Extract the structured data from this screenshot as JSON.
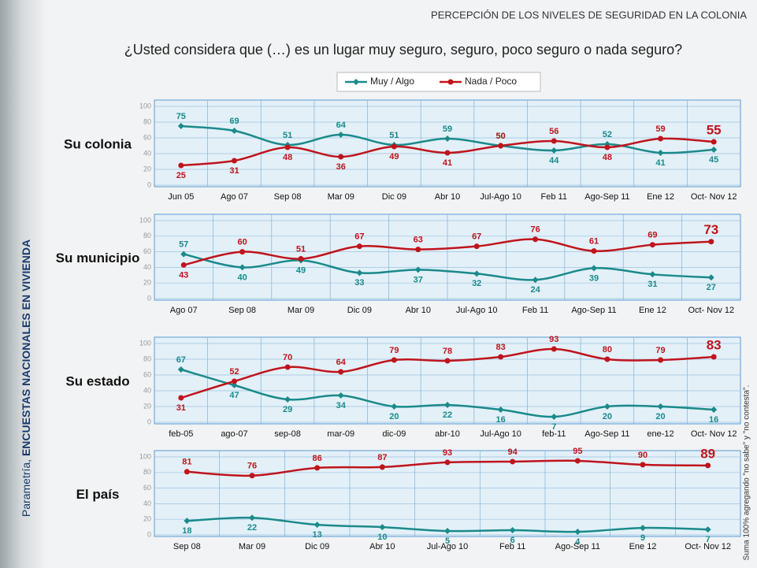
{
  "header": {
    "title": "PERCEPCIÓN DE LOS NIVELES DE SEGURIDAD EN LA COLONIA",
    "question": "¿Usted considera que (…) es un lugar muy seguro, seguro, poco seguro o nada seguro?"
  },
  "side": {
    "source": "Parametría, ",
    "survey": "ENCUESTAS NACIONALES EN VIVIENDA"
  },
  "note": "Suma 100% agregando \"no sabe\" y \"no contesta\".",
  "legend": [
    {
      "name": "Muy / Algo",
      "color": "#1a8a8a"
    },
    {
      "name": "Nada / Poco",
      "color": "#c0141c"
    }
  ],
  "chart_data": [
    {
      "type": "line",
      "title": "Su colonia",
      "categories": [
        "Jun 05",
        "Ago 07",
        "Sep 08",
        "Mar 09",
        "Dic 09",
        "Abr 10",
        "Jul-Ago 10",
        "Feb 11",
        "Ago-Sep 11",
        "Ene 12",
        "Oct- Nov 12"
      ],
      "series": [
        {
          "values": [
            75,
            69,
            51,
            64,
            51,
            59,
            50,
            44,
            52,
            41,
            45
          ]
        },
        {
          "values": [
            25,
            31,
            48,
            36,
            49,
            41,
            50,
            56,
            48,
            59,
            55
          ]
        }
      ],
      "ylim": [
        0,
        100
      ],
      "yticks": [
        0,
        20,
        40,
        60,
        80,
        100
      ],
      "grid": true
    },
    {
      "type": "line",
      "title": "Su municipio",
      "categories": [
        "Ago 07",
        "Sep 08",
        "Mar 09",
        "Dic 09",
        "Abr 10",
        "Jul-Ago 10",
        "Feb 11",
        "Ago-Sep 11",
        "Ene 12",
        "Oct- Nov 12"
      ],
      "series": [
        {
          "values": [
            57,
            40,
            49,
            33,
            37,
            32,
            24,
            39,
            31,
            27
          ]
        },
        {
          "values": [
            43,
            60,
            51,
            67,
            63,
            67,
            76,
            61,
            69,
            73
          ]
        }
      ],
      "ylim": [
        0,
        100
      ],
      "yticks": [
        0,
        20,
        40,
        60,
        80,
        100
      ],
      "grid": true
    },
    {
      "type": "line",
      "title": "Su estado",
      "categories": [
        "feb-05",
        "ago-07",
        "sep-08",
        "mar-09",
        "dic-09",
        "abr-10",
        "Jul-Ago 10",
        "feb-11",
        "Ago-Sep 11",
        "ene-12",
        "Oct- Nov 12"
      ],
      "series": [
        {
          "values": [
            67,
            47,
            29,
            34,
            20,
            22,
            16,
            7,
            20,
            20,
            16
          ]
        },
        {
          "values": [
            31,
            52,
            70,
            64,
            79,
            78,
            83,
            93,
            80,
            79,
            83
          ]
        }
      ],
      "ylim": [
        0,
        100
      ],
      "yticks": [
        0,
        20,
        40,
        60,
        80,
        100
      ],
      "grid": true
    },
    {
      "type": "line",
      "title": "El país",
      "categories": [
        "Sep 08",
        "Mar 09",
        "Dic 09",
        "Abr 10",
        "Jul-Ago 10",
        "Feb 11",
        "Ago-Sep 11",
        "Ene 12",
        "Oct- Nov 12"
      ],
      "series": [
        {
          "values": [
            18,
            22,
            13,
            10,
            5,
            6,
            4,
            9,
            7
          ]
        },
        {
          "values": [
            81,
            76,
            86,
            87,
            93,
            94,
            95,
            90,
            89
          ]
        }
      ],
      "ylim": [
        0,
        100
      ],
      "yticks": [
        0,
        20,
        40,
        60,
        80,
        100
      ],
      "grid": true
    }
  ]
}
